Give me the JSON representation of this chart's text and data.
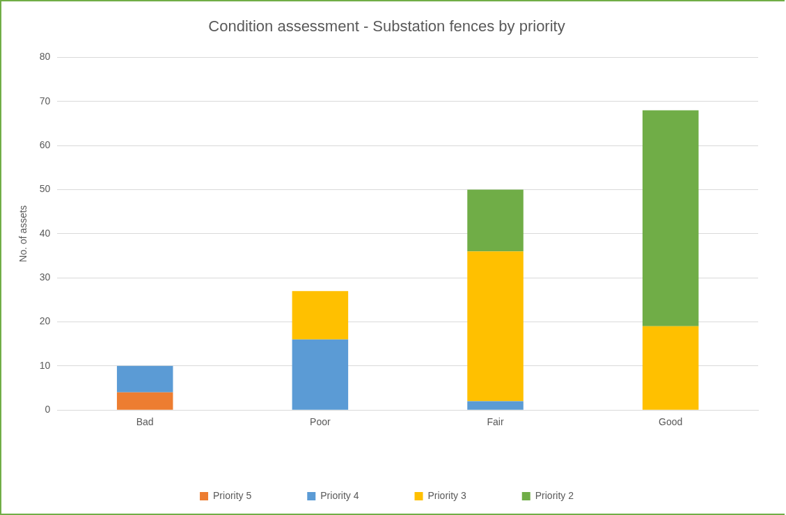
{
  "chart_data": {
    "type": "bar",
    "title": "Condition assessment - Substation fences by priority",
    "ylabel": "No. of assets",
    "categories": [
      "Bad",
      "Poor",
      "Fair",
      "Good"
    ],
    "stacked": true,
    "series": [
      {
        "name": "Priority 5",
        "color": "#ed7d31",
        "values": [
          4,
          0,
          0,
          0
        ]
      },
      {
        "name": "Priority 4",
        "color": "#5b9bd5",
        "values": [
          6,
          16,
          2,
          0
        ]
      },
      {
        "name": "Priority 3",
        "color": "#ffc000",
        "values": [
          0,
          11,
          34,
          19
        ]
      },
      {
        "name": "Priority 2",
        "color": "#70ad47",
        "values": [
          0,
          0,
          14,
          49
        ]
      }
    ],
    "ylim": [
      0,
      80
    ],
    "yticks": [
      0,
      10,
      20,
      30,
      40,
      50,
      60,
      70,
      80
    ],
    "grid": "y",
    "legend": "bottom"
  }
}
